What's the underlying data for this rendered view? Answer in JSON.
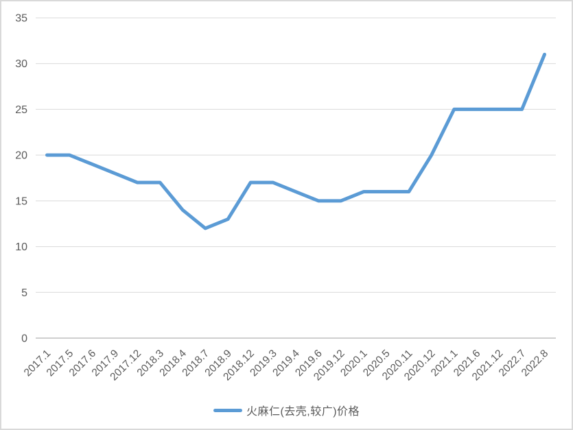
{
  "chart_data": {
    "type": "line",
    "title": "",
    "categories": [
      "2017.1",
      "2017.5",
      "2017.6",
      "2017.9",
      "2017.12",
      "2018.3",
      "2018.4",
      "2018.7",
      "2018.9",
      "2018.12",
      "2019.3",
      "2019.4",
      "2019.6",
      "2019.12",
      "2020.1",
      "2020.5",
      "2020.11",
      "2020.12",
      "2021.1",
      "2021.6",
      "2021.12",
      "2022.7",
      "2022.8"
    ],
    "series": [
      {
        "name": "火麻仁(去壳,较广)价格",
        "values": [
          20,
          20,
          19,
          18,
          17,
          17,
          14,
          12,
          13,
          17,
          17,
          16,
          15,
          15,
          16,
          16,
          16,
          20,
          25,
          25,
          25,
          25,
          31
        ]
      }
    ],
    "xlabel": "",
    "ylabel": "",
    "ylim": [
      0,
      35
    ],
    "yticks": [
      0,
      5,
      10,
      15,
      20,
      25,
      30,
      35
    ],
    "grid": true,
    "legend_position": "bottom",
    "x_label_rotation_deg": 45
  },
  "colors": {
    "line": "#5b9bd5",
    "gridline": "#d9d9d9",
    "axis_line": "#bfbfbf",
    "tick_label": "#595959",
    "legend_text": "#595959",
    "frame_border": "#d9d9d9",
    "background": "#ffffff"
  },
  "legend": {
    "label": "火麻仁(去壳,较广)价格"
  }
}
